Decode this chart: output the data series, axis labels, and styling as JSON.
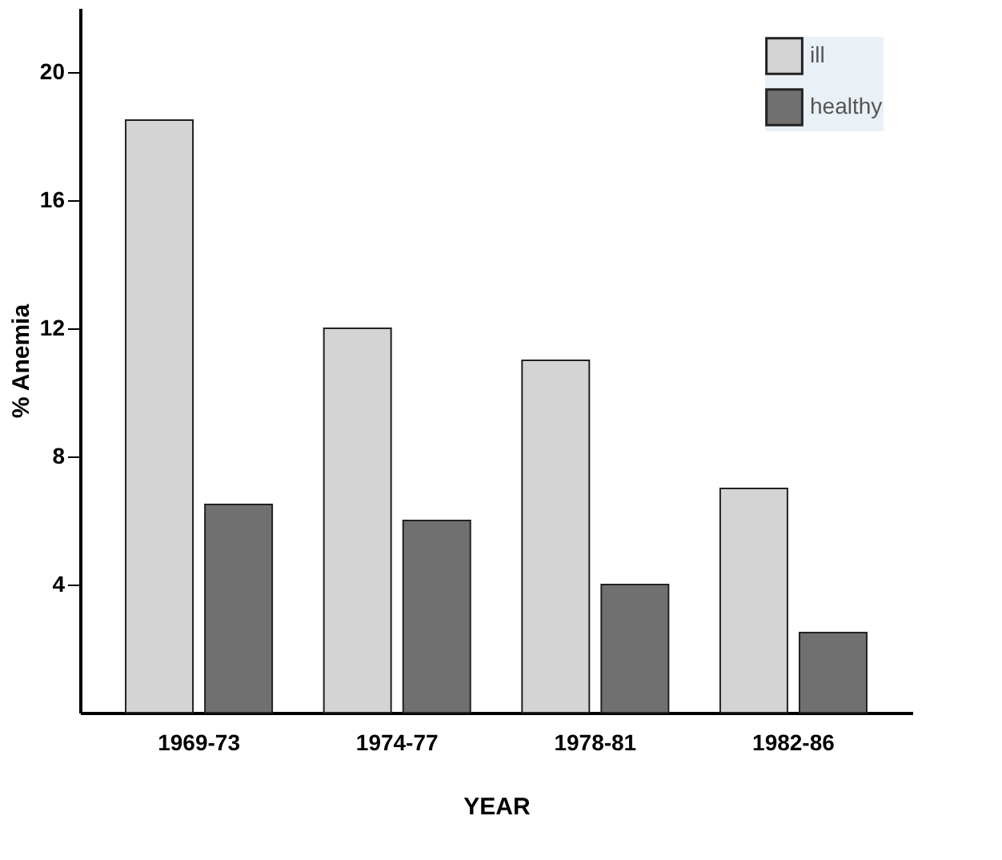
{
  "chart_data": {
    "type": "bar",
    "xlabel": "YEAR",
    "ylabel": "% Anemia",
    "categories": [
      "1969-73",
      "1974-77",
      "1978-81",
      "1982-86"
    ],
    "series": [
      {
        "name": "ill",
        "color": "#d4d4d4",
        "values": [
          18.5,
          12.0,
          11.0,
          7.0
        ]
      },
      {
        "name": "healthy",
        "color": "#707070",
        "values": [
          6.5,
          6.0,
          4.0,
          2.5
        ]
      }
    ],
    "ylim": [
      0,
      22
    ],
    "yticks": [
      4,
      8,
      12,
      16,
      20
    ],
    "grid": false,
    "legend": "top right"
  }
}
